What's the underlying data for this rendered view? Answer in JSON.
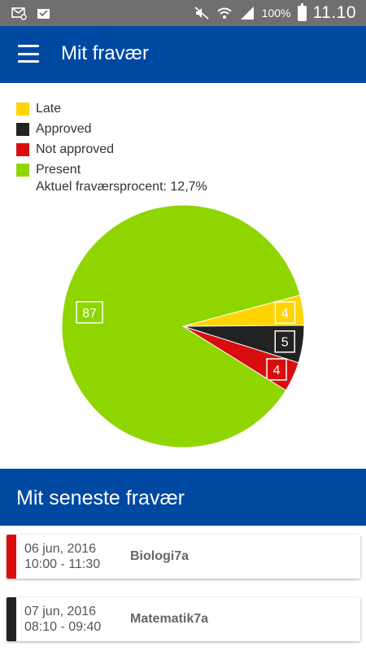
{
  "statusbar": {
    "battery": "100%",
    "time": "11.10"
  },
  "appbar": {
    "title": "Mit fravær"
  },
  "legend": [
    {
      "label": "Late",
      "color": "#ffd400"
    },
    {
      "label": "Approved",
      "color": "#222222"
    },
    {
      "label": "Not approved",
      "color": "#d80e0e"
    },
    {
      "label": "Present",
      "color": "#8fd600"
    }
  ],
  "percent_text": "Aktuel fraværsprocent: 12,7%",
  "chart_data": {
    "type": "pie",
    "slices": [
      {
        "name": "Late",
        "value": 4,
        "color": "#ffd400",
        "label": "4"
      },
      {
        "name": "Approved",
        "value": 5,
        "color": "#222222",
        "label": "5"
      },
      {
        "name": "Not approved",
        "value": 4,
        "color": "#d80e0e",
        "label": "4"
      },
      {
        "name": "Present",
        "value": 87,
        "color": "#8fd600",
        "label": "87"
      }
    ]
  },
  "section": {
    "title": "Mit seneste fravær"
  },
  "absences": [
    {
      "date": "06 jun, 2016",
      "time": "10:00 - 11:30",
      "subject": "Biologi7a",
      "color": "#d80e0e"
    },
    {
      "date": "07 jun, 2016",
      "time": "08:10 - 09:40",
      "subject": "Matematik7a",
      "color": "#222222"
    }
  ]
}
